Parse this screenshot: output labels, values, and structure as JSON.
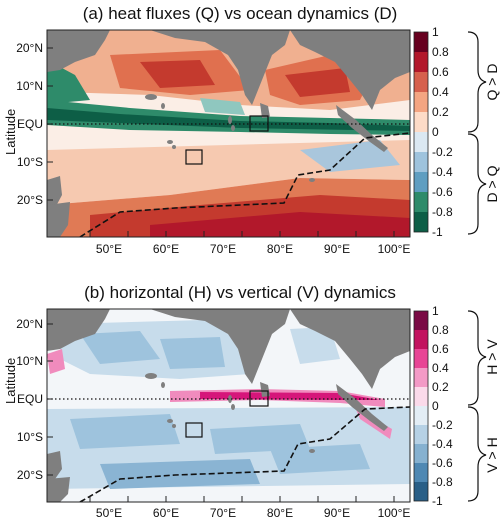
{
  "panel_a": {
    "title": "(a) heat fluxes (Q) vs ocean dynamics (D)",
    "y_axis_label": "Latitude",
    "lat_labels": [
      "20°N",
      "10°N",
      "EQU",
      "10°S",
      "20°S"
    ],
    "lon_labels": [
      "50°E",
      "60°E",
      "70°E",
      "80°E",
      "90°E",
      "100°E"
    ],
    "colorbar_ticks": [
      "1",
      "0.8",
      "0.6",
      "0.4",
      "0.2",
      "0",
      "-0.2",
      "-0.4",
      "-0.6",
      "-0.8",
      "-1"
    ],
    "brace_top": "Q > D",
    "brace_bottom": "D > Q",
    "colors": {
      "positive": "#b2182b",
      "negative": "#0d5e46",
      "land": "#7f7f7f"
    }
  },
  "panel_b": {
    "title": "(b) horizontal (H) vs vertical (V) dynamics",
    "y_axis_label": "Latitude",
    "lat_labels": [
      "20°N",
      "10°N",
      "EQU",
      "10°S",
      "20°S"
    ],
    "lon_labels": [
      "50°E",
      "60°E",
      "70°E",
      "80°E",
      "90°E",
      "100°E"
    ],
    "colorbar_ticks": [
      "1",
      "0.8",
      "0.6",
      "0.4",
      "0.2",
      "0",
      "-0.2",
      "-0.4",
      "-0.6",
      "-0.8",
      "-1"
    ],
    "brace_top": "H > V",
    "brace_bottom": "V > H",
    "colors": {
      "positive": "#d6167a",
      "negative": "#2f6d96",
      "land": "#7f7f7f"
    }
  }
}
